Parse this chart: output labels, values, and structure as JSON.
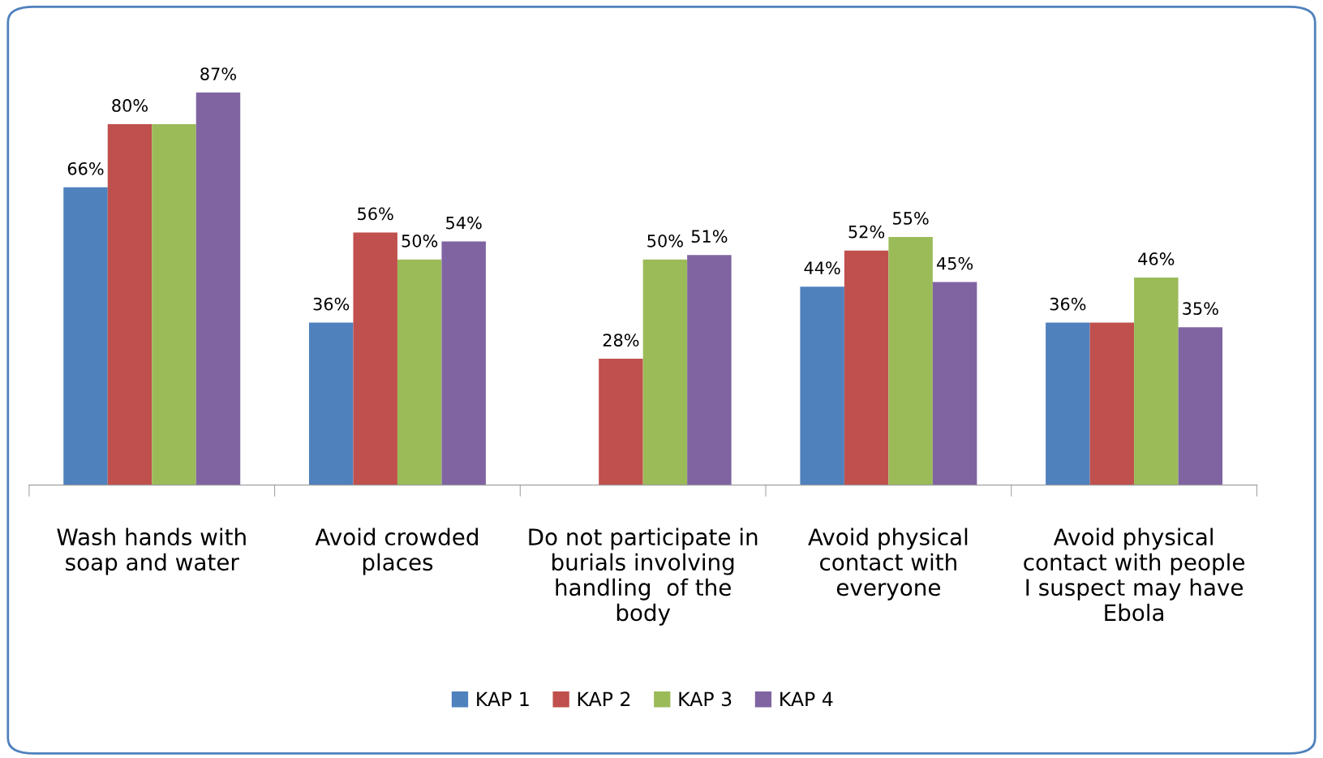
{
  "chart_data": {
    "type": "bar",
    "categories": [
      "Wash hands with\nsoap and water",
      "Avoid crowded\nplaces",
      "Do not participate in\nburials involving\nhandling  of the\nbody",
      "Avoid physical\ncontact with\neveryone",
      "Avoid physical\ncontact with people\nI suspect may have\nEbola"
    ],
    "series": [
      {
        "name": "KAP 1",
        "color": "#4f81bd",
        "values": [
          66,
          36,
          null,
          44,
          36
        ],
        "value_labels": [
          "66%",
          "36%",
          null,
          "44%",
          "36%"
        ]
      },
      {
        "name": "KAP 2",
        "color": "#c0504d",
        "values": [
          80,
          56,
          28,
          52,
          36
        ],
        "value_labels": [
          "80%",
          "56%",
          "28%",
          "52%",
          null
        ]
      },
      {
        "name": "KAP 3",
        "color": "#9bbb59",
        "values": [
          80,
          50,
          50,
          55,
          46
        ],
        "value_labels": [
          null,
          "50%",
          "50%",
          "55%",
          "46%"
        ]
      },
      {
        "name": "KAP 4",
        "color": "#8064a2",
        "values": [
          87,
          54,
          51,
          45,
          35
        ],
        "value_labels": [
          "87%",
          "54%",
          "51%",
          "45%",
          "35%"
        ]
      }
    ],
    "legend": "bottom",
    "grid": false
  }
}
